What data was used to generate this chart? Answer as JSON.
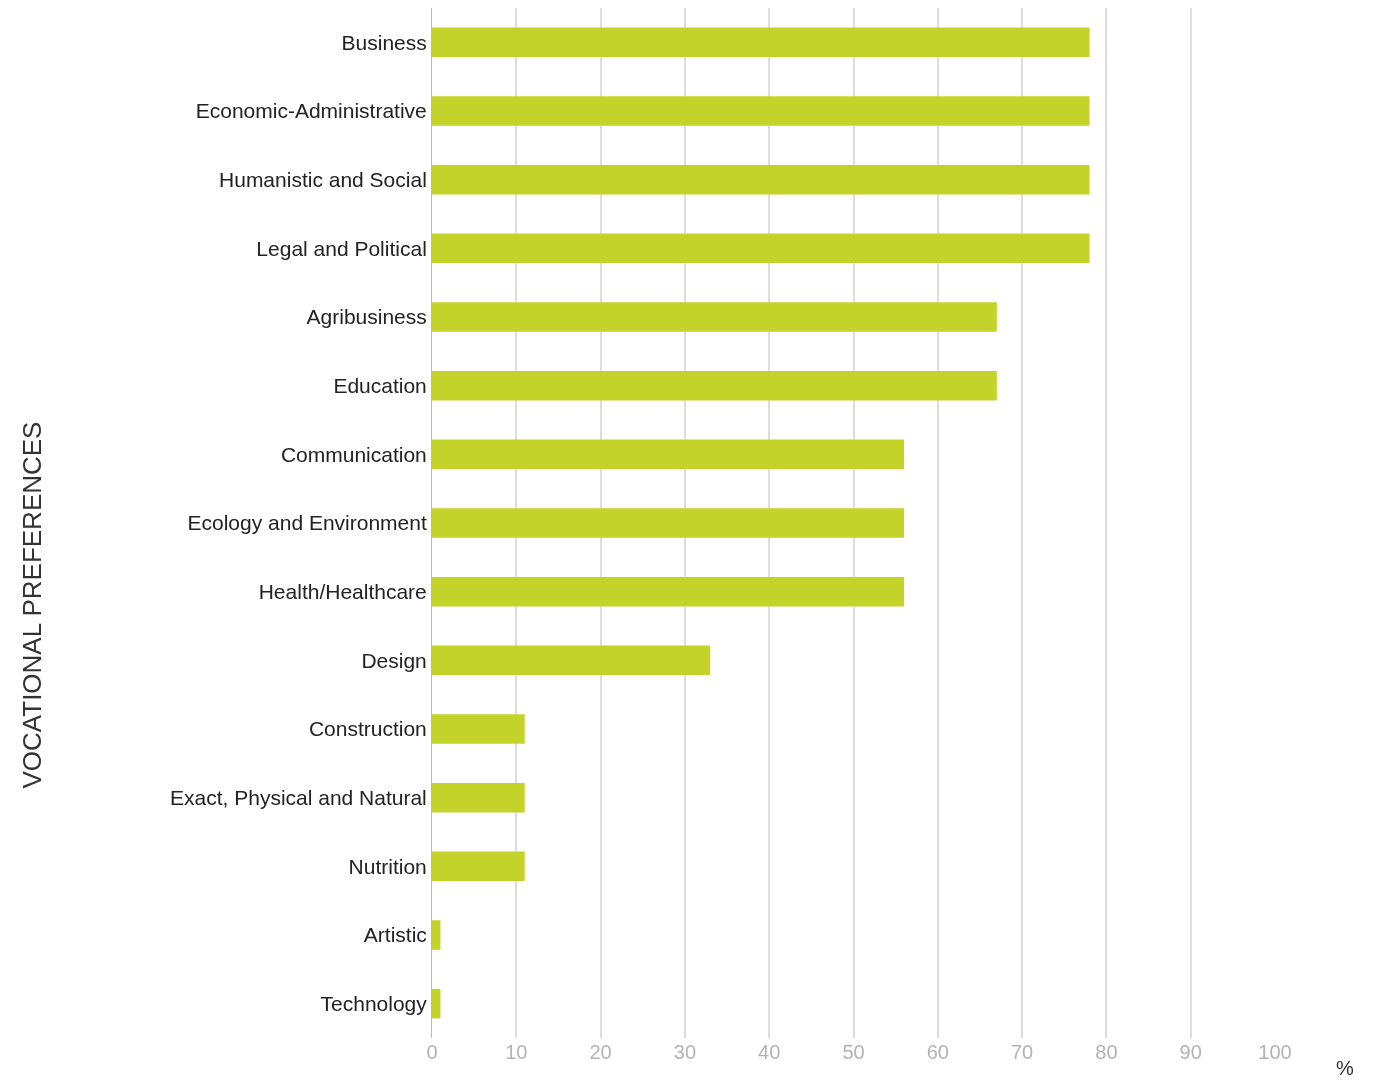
{
  "chart_data": {
    "type": "bar",
    "orientation": "horizontal",
    "ylabel": "VOCATIONAL PREFERENCES",
    "xlabel": "%",
    "categories": [
      "Business",
      "Economic-Administrative",
      "Humanistic and Social",
      "Legal and Political",
      "Agribusiness",
      "Education",
      "Communication",
      "Ecology and Environment",
      "Health/Healthcare",
      "Design",
      "Construction",
      "Exact, Physical and Natural",
      "Nutrition",
      "Artistic",
      "Technology"
    ],
    "values": [
      78,
      78,
      78,
      78,
      67,
      67,
      56,
      56,
      56,
      33,
      11,
      11,
      11,
      1,
      1
    ],
    "color": "#c4d32a",
    "xlim": [
      0,
      100
    ],
    "xticks": [
      0,
      10,
      20,
      30,
      40,
      50,
      60,
      70,
      80,
      90,
      100
    ],
    "grid": "x"
  }
}
